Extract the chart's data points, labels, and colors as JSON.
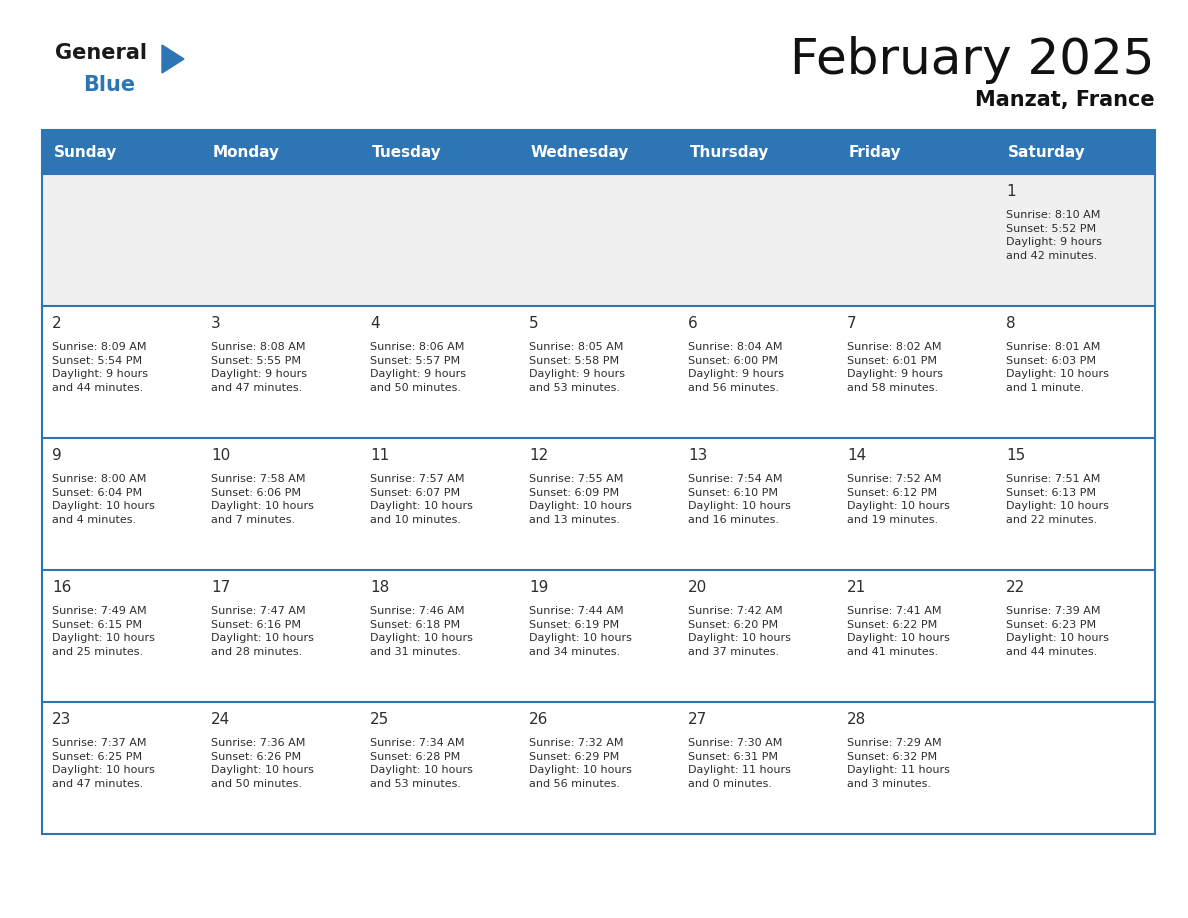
{
  "title": "February 2025",
  "subtitle": "Manzat, France",
  "header_color": "#2E75B6",
  "header_text_color": "#FFFFFF",
  "border_color": "#2E75B6",
  "day_number_color": "#2E2E2E",
  "cell_text_color": "#2E2E2E",
  "week1_bg": "#F0F0F0",
  "week_bg": "#FFFFFF",
  "days_of_week": [
    "Sunday",
    "Monday",
    "Tuesday",
    "Wednesday",
    "Thursday",
    "Friday",
    "Saturday"
  ],
  "weeks": [
    [
      {
        "day": null,
        "info": null
      },
      {
        "day": null,
        "info": null
      },
      {
        "day": null,
        "info": null
      },
      {
        "day": null,
        "info": null
      },
      {
        "day": null,
        "info": null
      },
      {
        "day": null,
        "info": null
      },
      {
        "day": "1",
        "info": "Sunrise: 8:10 AM\nSunset: 5:52 PM\nDaylight: 9 hours\nand 42 minutes."
      }
    ],
    [
      {
        "day": "2",
        "info": "Sunrise: 8:09 AM\nSunset: 5:54 PM\nDaylight: 9 hours\nand 44 minutes."
      },
      {
        "day": "3",
        "info": "Sunrise: 8:08 AM\nSunset: 5:55 PM\nDaylight: 9 hours\nand 47 minutes."
      },
      {
        "day": "4",
        "info": "Sunrise: 8:06 AM\nSunset: 5:57 PM\nDaylight: 9 hours\nand 50 minutes."
      },
      {
        "day": "5",
        "info": "Sunrise: 8:05 AM\nSunset: 5:58 PM\nDaylight: 9 hours\nand 53 minutes."
      },
      {
        "day": "6",
        "info": "Sunrise: 8:04 AM\nSunset: 6:00 PM\nDaylight: 9 hours\nand 56 minutes."
      },
      {
        "day": "7",
        "info": "Sunrise: 8:02 AM\nSunset: 6:01 PM\nDaylight: 9 hours\nand 58 minutes."
      },
      {
        "day": "8",
        "info": "Sunrise: 8:01 AM\nSunset: 6:03 PM\nDaylight: 10 hours\nand 1 minute."
      }
    ],
    [
      {
        "day": "9",
        "info": "Sunrise: 8:00 AM\nSunset: 6:04 PM\nDaylight: 10 hours\nand 4 minutes."
      },
      {
        "day": "10",
        "info": "Sunrise: 7:58 AM\nSunset: 6:06 PM\nDaylight: 10 hours\nand 7 minutes."
      },
      {
        "day": "11",
        "info": "Sunrise: 7:57 AM\nSunset: 6:07 PM\nDaylight: 10 hours\nand 10 minutes."
      },
      {
        "day": "12",
        "info": "Sunrise: 7:55 AM\nSunset: 6:09 PM\nDaylight: 10 hours\nand 13 minutes."
      },
      {
        "day": "13",
        "info": "Sunrise: 7:54 AM\nSunset: 6:10 PM\nDaylight: 10 hours\nand 16 minutes."
      },
      {
        "day": "14",
        "info": "Sunrise: 7:52 AM\nSunset: 6:12 PM\nDaylight: 10 hours\nand 19 minutes."
      },
      {
        "day": "15",
        "info": "Sunrise: 7:51 AM\nSunset: 6:13 PM\nDaylight: 10 hours\nand 22 minutes."
      }
    ],
    [
      {
        "day": "16",
        "info": "Sunrise: 7:49 AM\nSunset: 6:15 PM\nDaylight: 10 hours\nand 25 minutes."
      },
      {
        "day": "17",
        "info": "Sunrise: 7:47 AM\nSunset: 6:16 PM\nDaylight: 10 hours\nand 28 minutes."
      },
      {
        "day": "18",
        "info": "Sunrise: 7:46 AM\nSunset: 6:18 PM\nDaylight: 10 hours\nand 31 minutes."
      },
      {
        "day": "19",
        "info": "Sunrise: 7:44 AM\nSunset: 6:19 PM\nDaylight: 10 hours\nand 34 minutes."
      },
      {
        "day": "20",
        "info": "Sunrise: 7:42 AM\nSunset: 6:20 PM\nDaylight: 10 hours\nand 37 minutes."
      },
      {
        "day": "21",
        "info": "Sunrise: 7:41 AM\nSunset: 6:22 PM\nDaylight: 10 hours\nand 41 minutes."
      },
      {
        "day": "22",
        "info": "Sunrise: 7:39 AM\nSunset: 6:23 PM\nDaylight: 10 hours\nand 44 minutes."
      }
    ],
    [
      {
        "day": "23",
        "info": "Sunrise: 7:37 AM\nSunset: 6:25 PM\nDaylight: 10 hours\nand 47 minutes."
      },
      {
        "day": "24",
        "info": "Sunrise: 7:36 AM\nSunset: 6:26 PM\nDaylight: 10 hours\nand 50 minutes."
      },
      {
        "day": "25",
        "info": "Sunrise: 7:34 AM\nSunset: 6:28 PM\nDaylight: 10 hours\nand 53 minutes."
      },
      {
        "day": "26",
        "info": "Sunrise: 7:32 AM\nSunset: 6:29 PM\nDaylight: 10 hours\nand 56 minutes."
      },
      {
        "day": "27",
        "info": "Sunrise: 7:30 AM\nSunset: 6:31 PM\nDaylight: 11 hours\nand 0 minutes."
      },
      {
        "day": "28",
        "info": "Sunrise: 7:29 AM\nSunset: 6:32 PM\nDaylight: 11 hours\nand 3 minutes."
      },
      {
        "day": null,
        "info": null
      }
    ]
  ],
  "logo_general_color": "#1a1a1a",
  "logo_blue_color": "#2E75B6",
  "logo_triangle_color": "#2E75B6",
  "title_fontsize": 36,
  "subtitle_fontsize": 15,
  "header_fontsize": 11,
  "day_num_fontsize": 11,
  "info_fontsize": 8
}
